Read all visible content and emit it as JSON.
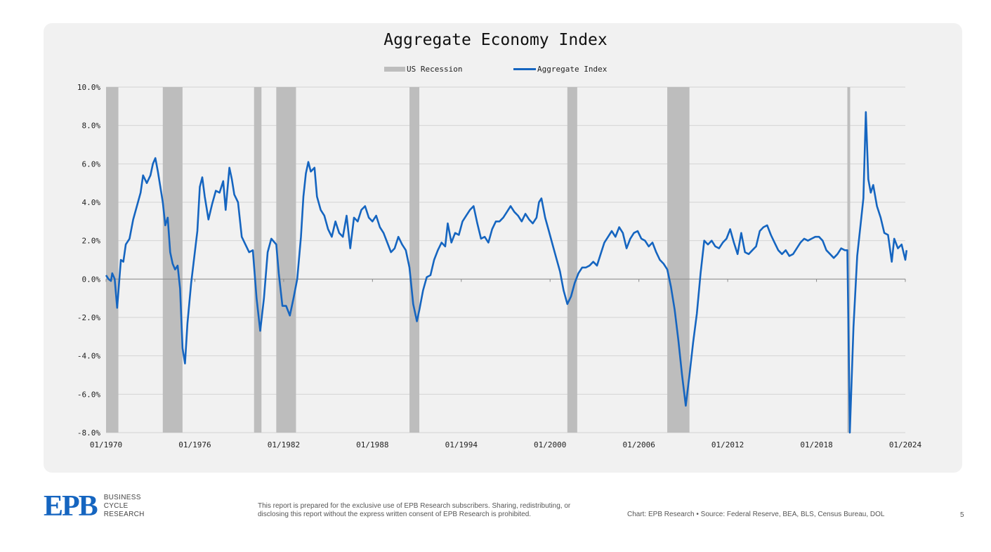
{
  "colors": {
    "line": "#1565c0",
    "recession": "#bdbdbd",
    "background": "#f1f1f1",
    "grid": "#d4d4d4"
  },
  "legend": {
    "recession_label": "US Recession",
    "index_label": "Aggregate Index"
  },
  "footer": {
    "logo_text": "EPB",
    "logo_words": [
      "BUSINESS",
      "CYCLE",
      "RESEARCH"
    ],
    "disclaimer": "This report is prepared for the exclusive use of EPB Research subscribers. Sharing, redistributing, or disclosing this report without the express written consent of EPB Research is prohibited.",
    "credit": "Chart: EPB Research  •  Source: Federal Reserve, BEA, BLS, Census Bureau, DOL",
    "page_number": "5"
  },
  "chart_data": {
    "type": "line",
    "title": "Aggregate Economy Index",
    "xlabel": "",
    "ylabel": "",
    "ylim": [
      -8,
      10
    ],
    "xlim": [
      "1970-01",
      "2024-01"
    ],
    "y_ticks": [
      10,
      8,
      6,
      4,
      2,
      0,
      -2,
      -4,
      -6,
      -8
    ],
    "y_tick_labels": [
      "10.0%",
      "8.0%",
      "6.0%",
      "4.0%",
      "2.0%",
      "0.0%",
      "-2.0%",
      "-4.0%",
      "-6.0%",
      "-8.0%"
    ],
    "x_ticks": [
      "1970-01",
      "1976-01",
      "1982-01",
      "1988-01",
      "1994-01",
      "2000-01",
      "2006-01",
      "2012-01",
      "2018-01",
      "2024-01"
    ],
    "x_tick_labels": [
      "01/1970",
      "01/1976",
      "01/1982",
      "01/1988",
      "01/1994",
      "01/2000",
      "01/2006",
      "01/2012",
      "01/2018",
      "01/2024"
    ],
    "grid": true,
    "legend_position": "top-center",
    "recessions": [
      {
        "start": "1970-01",
        "end": "1970-11"
      },
      {
        "start": "1973-11",
        "end": "1975-03"
      },
      {
        "start": "1980-01",
        "end": "1980-07"
      },
      {
        "start": "1981-07",
        "end": "1982-11"
      },
      {
        "start": "1990-07",
        "end": "1991-03"
      },
      {
        "start": "2001-03",
        "end": "2001-11"
      },
      {
        "start": "2007-12",
        "end": "2009-06"
      },
      {
        "start": "2020-02",
        "end": "2020-04"
      }
    ],
    "series": [
      {
        "name": "Aggregate Index",
        "points": [
          [
            "1970-01",
            0.2
          ],
          [
            "1970-03",
            0.0
          ],
          [
            "1970-05",
            -0.1
          ],
          [
            "1970-06",
            0.3
          ],
          [
            "1970-08",
            0.0
          ],
          [
            "1970-10",
            -1.5
          ],
          [
            "1971-01",
            1.0
          ],
          [
            "1971-03",
            0.9
          ],
          [
            "1971-05",
            1.8
          ],
          [
            "1971-08",
            2.1
          ],
          [
            "1971-11",
            3.1
          ],
          [
            "1972-02",
            3.8
          ],
          [
            "1972-05",
            4.5
          ],
          [
            "1972-07",
            5.4
          ],
          [
            "1972-10",
            5.0
          ],
          [
            "1973-01",
            5.4
          ],
          [
            "1973-03",
            6.0
          ],
          [
            "1973-05",
            6.3
          ],
          [
            "1973-07",
            5.6
          ],
          [
            "1973-09",
            4.8
          ],
          [
            "1973-11",
            4.0
          ],
          [
            "1974-01",
            2.8
          ],
          [
            "1974-03",
            3.2
          ],
          [
            "1974-05",
            1.4
          ],
          [
            "1974-07",
            0.8
          ],
          [
            "1974-09",
            0.5
          ],
          [
            "1974-11",
            0.7
          ],
          [
            "1975-01",
            -0.5
          ],
          [
            "1975-03",
            -3.6
          ],
          [
            "1975-05",
            -4.4
          ],
          [
            "1975-07",
            -2.3
          ],
          [
            "1975-10",
            -0.2
          ],
          [
            "1976-01",
            1.4
          ],
          [
            "1976-03",
            2.5
          ],
          [
            "1976-05",
            4.8
          ],
          [
            "1976-07",
            5.3
          ],
          [
            "1976-09",
            4.3
          ],
          [
            "1976-12",
            3.1
          ],
          [
            "1977-03",
            3.9
          ],
          [
            "1977-06",
            4.6
          ],
          [
            "1977-09",
            4.5
          ],
          [
            "1977-12",
            5.1
          ],
          [
            "1978-02",
            3.6
          ],
          [
            "1978-05",
            5.8
          ],
          [
            "1978-07",
            5.2
          ],
          [
            "1978-09",
            4.4
          ],
          [
            "1978-12",
            4.0
          ],
          [
            "1979-03",
            2.2
          ],
          [
            "1979-06",
            1.8
          ],
          [
            "1979-09",
            1.4
          ],
          [
            "1979-12",
            1.5
          ],
          [
            "1980-03",
            -1.0
          ],
          [
            "1980-06",
            -2.7
          ],
          [
            "1980-09",
            -1.0
          ],
          [
            "1980-12",
            1.4
          ],
          [
            "1981-03",
            2.1
          ],
          [
            "1981-07",
            1.8
          ],
          [
            "1981-09",
            0.3
          ],
          [
            "1981-12",
            -1.4
          ],
          [
            "1982-03",
            -1.4
          ],
          [
            "1982-06",
            -1.9
          ],
          [
            "1982-09",
            -1.0
          ],
          [
            "1982-12",
            0.0
          ],
          [
            "1983-03",
            2.2
          ],
          [
            "1983-05",
            4.3
          ],
          [
            "1983-07",
            5.5
          ],
          [
            "1983-09",
            6.1
          ],
          [
            "1983-11",
            5.6
          ],
          [
            "1984-02",
            5.8
          ],
          [
            "1984-04",
            4.3
          ],
          [
            "1984-07",
            3.6
          ],
          [
            "1984-10",
            3.3
          ],
          [
            "1985-01",
            2.6
          ],
          [
            "1985-04",
            2.2
          ],
          [
            "1985-07",
            3.0
          ],
          [
            "1985-10",
            2.4
          ],
          [
            "1986-01",
            2.2
          ],
          [
            "1986-04",
            3.3
          ],
          [
            "1986-07",
            1.6
          ],
          [
            "1986-10",
            3.2
          ],
          [
            "1987-01",
            3.0
          ],
          [
            "1987-04",
            3.6
          ],
          [
            "1987-07",
            3.8
          ],
          [
            "1987-10",
            3.2
          ],
          [
            "1988-01",
            3.0
          ],
          [
            "1988-04",
            3.3
          ],
          [
            "1988-07",
            2.7
          ],
          [
            "1988-10",
            2.4
          ],
          [
            "1989-01",
            1.9
          ],
          [
            "1989-04",
            1.4
          ],
          [
            "1989-07",
            1.6
          ],
          [
            "1989-10",
            2.2
          ],
          [
            "1990-01",
            1.8
          ],
          [
            "1990-04",
            1.5
          ],
          [
            "1990-07",
            0.6
          ],
          [
            "1990-10",
            -1.3
          ],
          [
            "1991-01",
            -2.2
          ],
          [
            "1991-03",
            -1.6
          ],
          [
            "1991-06",
            -0.6
          ],
          [
            "1991-09",
            0.1
          ],
          [
            "1991-12",
            0.2
          ],
          [
            "1992-03",
            1.0
          ],
          [
            "1992-06",
            1.5
          ],
          [
            "1992-09",
            1.9
          ],
          [
            "1992-12",
            1.7
          ],
          [
            "1993-02",
            2.9
          ],
          [
            "1993-05",
            1.9
          ],
          [
            "1993-08",
            2.4
          ],
          [
            "1993-11",
            2.3
          ],
          [
            "1994-02",
            3.0
          ],
          [
            "1994-05",
            3.3
          ],
          [
            "1994-08",
            3.6
          ],
          [
            "1994-11",
            3.8
          ],
          [
            "1995-02",
            2.9
          ],
          [
            "1995-05",
            2.1
          ],
          [
            "1995-08",
            2.2
          ],
          [
            "1995-11",
            1.9
          ],
          [
            "1996-02",
            2.6
          ],
          [
            "1996-05",
            3.0
          ],
          [
            "1996-08",
            3.0
          ],
          [
            "1996-11",
            3.2
          ],
          [
            "1997-02",
            3.5
          ],
          [
            "1997-05",
            3.8
          ],
          [
            "1997-08",
            3.5
          ],
          [
            "1997-11",
            3.3
          ],
          [
            "1998-02",
            3.0
          ],
          [
            "1998-05",
            3.4
          ],
          [
            "1998-08",
            3.1
          ],
          [
            "1998-11",
            2.9
          ],
          [
            "1999-02",
            3.2
          ],
          [
            "1999-04",
            4.0
          ],
          [
            "1999-06",
            4.2
          ],
          [
            "1999-09",
            3.2
          ],
          [
            "1999-12",
            2.5
          ],
          [
            "2000-03",
            1.8
          ],
          [
            "2000-06",
            1.1
          ],
          [
            "2000-09",
            0.4
          ],
          [
            "2000-12",
            -0.6
          ],
          [
            "2001-03",
            -1.3
          ],
          [
            "2001-06",
            -0.9
          ],
          [
            "2001-09",
            -0.2
          ],
          [
            "2001-12",
            0.3
          ],
          [
            "2002-03",
            0.6
          ],
          [
            "2002-06",
            0.6
          ],
          [
            "2002-09",
            0.7
          ],
          [
            "2002-12",
            0.9
          ],
          [
            "2003-03",
            0.7
          ],
          [
            "2003-06",
            1.3
          ],
          [
            "2003-09",
            1.9
          ],
          [
            "2003-12",
            2.2
          ],
          [
            "2004-03",
            2.5
          ],
          [
            "2004-06",
            2.2
          ],
          [
            "2004-09",
            2.7
          ],
          [
            "2004-12",
            2.4
          ],
          [
            "2005-03",
            1.6
          ],
          [
            "2005-06",
            2.1
          ],
          [
            "2005-09",
            2.4
          ],
          [
            "2005-12",
            2.5
          ],
          [
            "2006-03",
            2.1
          ],
          [
            "2006-06",
            2.0
          ],
          [
            "2006-09",
            1.7
          ],
          [
            "2006-12",
            1.9
          ],
          [
            "2007-03",
            1.4
          ],
          [
            "2007-06",
            1.0
          ],
          [
            "2007-09",
            0.8
          ],
          [
            "2007-12",
            0.5
          ],
          [
            "2008-03",
            -0.4
          ],
          [
            "2008-06",
            -1.6
          ],
          [
            "2008-09",
            -3.2
          ],
          [
            "2008-12",
            -5.0
          ],
          [
            "2009-03",
            -6.6
          ],
          [
            "2009-06",
            -5.0
          ],
          [
            "2009-09",
            -3.3
          ],
          [
            "2009-12",
            -1.8
          ],
          [
            "2010-03",
            0.3
          ],
          [
            "2010-06",
            2.0
          ],
          [
            "2010-09",
            1.8
          ],
          [
            "2010-12",
            2.0
          ],
          [
            "2011-03",
            1.7
          ],
          [
            "2011-06",
            1.6
          ],
          [
            "2011-09",
            1.9
          ],
          [
            "2011-12",
            2.1
          ],
          [
            "2012-03",
            2.6
          ],
          [
            "2012-06",
            1.9
          ],
          [
            "2012-09",
            1.3
          ],
          [
            "2012-12",
            2.4
          ],
          [
            "2013-03",
            1.4
          ],
          [
            "2013-06",
            1.3
          ],
          [
            "2013-09",
            1.5
          ],
          [
            "2013-12",
            1.7
          ],
          [
            "2014-03",
            2.5
          ],
          [
            "2014-06",
            2.7
          ],
          [
            "2014-09",
            2.8
          ],
          [
            "2014-12",
            2.3
          ],
          [
            "2015-03",
            1.9
          ],
          [
            "2015-06",
            1.5
          ],
          [
            "2015-09",
            1.3
          ],
          [
            "2015-12",
            1.5
          ],
          [
            "2016-03",
            1.2
          ],
          [
            "2016-06",
            1.3
          ],
          [
            "2016-09",
            1.6
          ],
          [
            "2016-12",
            1.9
          ],
          [
            "2017-03",
            2.1
          ],
          [
            "2017-06",
            2.0
          ],
          [
            "2017-09",
            2.1
          ],
          [
            "2017-12",
            2.2
          ],
          [
            "2018-03",
            2.2
          ],
          [
            "2018-06",
            2.0
          ],
          [
            "2018-09",
            1.5
          ],
          [
            "2018-12",
            1.3
          ],
          [
            "2019-03",
            1.1
          ],
          [
            "2019-06",
            1.3
          ],
          [
            "2019-09",
            1.6
          ],
          [
            "2019-12",
            1.5
          ],
          [
            "2020-02",
            1.5
          ],
          [
            "2020-04",
            -8.0
          ],
          [
            "2020-07",
            -2.5
          ],
          [
            "2020-10",
            1.2
          ],
          [
            "2021-01",
            3.0
          ],
          [
            "2021-03",
            4.2
          ],
          [
            "2021-05",
            8.7
          ],
          [
            "2021-07",
            5.2
          ],
          [
            "2021-09",
            4.5
          ],
          [
            "2021-11",
            4.9
          ],
          [
            "2022-02",
            3.8
          ],
          [
            "2022-05",
            3.2
          ],
          [
            "2022-08",
            2.4
          ],
          [
            "2022-11",
            2.3
          ],
          [
            "2023-02",
            0.9
          ],
          [
            "2023-04",
            2.1
          ],
          [
            "2023-07",
            1.6
          ],
          [
            "2023-10",
            1.8
          ],
          [
            "2024-01",
            1.0
          ],
          [
            "2024-02",
            1.5
          ]
        ]
      }
    ]
  }
}
